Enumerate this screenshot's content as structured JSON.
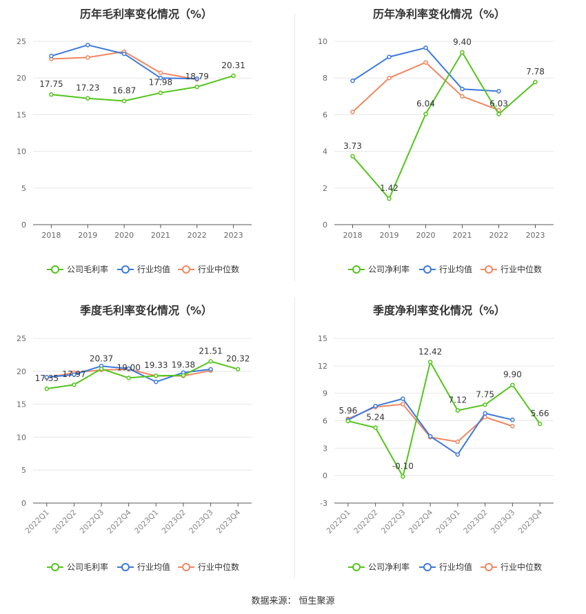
{
  "source": {
    "label": "数据来源：",
    "value": "恒生聚源"
  },
  "colors": {
    "company": "#52c41a",
    "industry_avg": "#3a78e0",
    "industry_median": "#f0865f"
  },
  "chart_data": [
    {
      "type": "line",
      "title": "历年毛利率变化情况（%）",
      "categories": [
        "2018",
        "2019",
        "2020",
        "2021",
        "2022",
        "2023"
      ],
      "ylim": [
        0,
        25
      ],
      "yticks": [
        0,
        5,
        10,
        15,
        20,
        25
      ],
      "grid": true,
      "legend_position": "bottom",
      "series": [
        {
          "name": "公司毛利率",
          "values": [
            17.75,
            17.23,
            16.87,
            17.98,
            18.79,
            20.31
          ],
          "labels": [
            "17.75",
            "17.23",
            "16.87",
            "17.98",
            "18.79",
            "20.31"
          ]
        },
        {
          "name": "行业均值",
          "values": [
            23.0,
            24.5,
            23.3,
            20.0,
            19.9,
            null
          ]
        },
        {
          "name": "行业中位数",
          "values": [
            22.6,
            22.8,
            23.6,
            20.7,
            19.8,
            null
          ]
        }
      ]
    },
    {
      "type": "line",
      "title": "历年净利率变化情况（%）",
      "categories": [
        "2018",
        "2019",
        "2020",
        "2021",
        "2022",
        "2023"
      ],
      "ylim": [
        0,
        10
      ],
      "yticks": [
        0,
        2,
        4,
        6,
        8,
        10
      ],
      "grid": true,
      "legend_position": "bottom",
      "series": [
        {
          "name": "公司净利率",
          "values": [
            3.73,
            1.42,
            6.04,
            9.4,
            6.03,
            7.78
          ],
          "labels": [
            "3.73",
            "1.42",
            "6.04",
            "9.40",
            "6.03",
            "7.78"
          ]
        },
        {
          "name": "行业均值",
          "values": [
            7.85,
            9.15,
            9.65,
            7.4,
            7.28,
            null
          ]
        },
        {
          "name": "行业中位数",
          "values": [
            6.15,
            8.0,
            8.85,
            7.0,
            6.25,
            null
          ]
        }
      ]
    },
    {
      "type": "line",
      "title": "季度毛利率变化情况（%）",
      "categories": [
        "2022Q1",
        "2022Q2",
        "2022Q3",
        "2022Q4",
        "2023Q1",
        "2023Q2",
        "2023Q3",
        "2023Q4"
      ],
      "ylim": [
        0,
        25
      ],
      "yticks": [
        0,
        5,
        10,
        15,
        20,
        25
      ],
      "grid": true,
      "legend_position": "bottom",
      "series": [
        {
          "name": "公司毛利率",
          "values": [
            17.35,
            17.97,
            20.37,
            19.0,
            19.33,
            19.38,
            21.51,
            20.32
          ],
          "labels": [
            "17.35",
            "17.97",
            "20.37",
            "19.00",
            "19.33",
            "19.38",
            "21.51",
            "20.32"
          ]
        },
        {
          "name": "行业均值",
          "values": [
            19.1,
            19.5,
            20.8,
            20.4,
            18.4,
            19.8,
            20.3,
            null
          ]
        },
        {
          "name": "行业中位数",
          "values": [
            19.0,
            19.8,
            20.2,
            20.3,
            19.3,
            19.3,
            20.1,
            null
          ]
        }
      ]
    },
    {
      "type": "line",
      "title": "季度净利率变化情况（%）",
      "categories": [
        "2022Q1",
        "2022Q2",
        "2022Q3",
        "2022Q4",
        "2023Q1",
        "2023Q2",
        "2023Q3",
        "2023Q4"
      ],
      "ylim": [
        -3,
        15
      ],
      "yticks": [
        -3,
        0,
        3,
        6,
        9,
        12,
        15
      ],
      "grid": true,
      "legend_position": "bottom",
      "series": [
        {
          "name": "公司净利率",
          "values": [
            5.96,
            5.24,
            -0.1,
            12.42,
            7.12,
            7.75,
            9.9,
            5.66
          ],
          "labels": [
            "5.96",
            "5.24",
            "-0.10",
            "12.42",
            "7.12",
            "7.75",
            "9.90",
            "5.66"
          ]
        },
        {
          "name": "行业均值",
          "values": [
            6.1,
            7.6,
            8.4,
            4.3,
            2.3,
            6.8,
            6.1,
            null
          ]
        },
        {
          "name": "行业中位数",
          "values": [
            6.2,
            7.5,
            7.8,
            4.2,
            3.7,
            6.4,
            5.4,
            null
          ]
        }
      ]
    }
  ]
}
